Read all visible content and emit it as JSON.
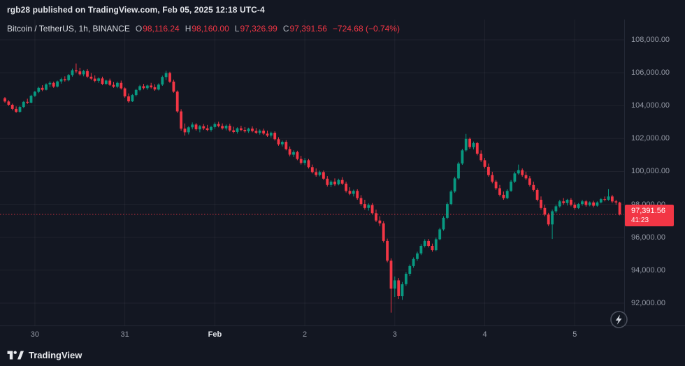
{
  "attribution": {
    "text": "rgb28 published on TradingView.com, Feb 05, 2025 12:18 UTC-4"
  },
  "legend": {
    "symbol": "Bitcoin / TetherUS, 1h, BINANCE",
    "o_label": "O",
    "o_value": "98,116.24",
    "h_label": "H",
    "h_value": "98,160.00",
    "l_label": "L",
    "l_value": "97,326.99",
    "c_label": "C",
    "c_value": "97,391.56",
    "change": "−724.68 (−0.74%)"
  },
  "price_label": {
    "price": "97,391.56",
    "countdown": "41:23"
  },
  "price_axis": {
    "labels": [
      "108,000.00",
      "106,000.00",
      "104,000.00",
      "102,000.00",
      "100,000.00",
      "98,000.00",
      "96,000.00",
      "94,000.00",
      "92,000.00"
    ],
    "values": [
      108000,
      106000,
      104000,
      102000,
      100000,
      98000,
      96000,
      94000,
      92000
    ]
  },
  "time_axis": {
    "ticks": [
      {
        "label": "30",
        "index": 8,
        "major": false
      },
      {
        "label": "31",
        "index": 32,
        "major": false
      },
      {
        "label": "Feb",
        "index": 56,
        "major": true
      },
      {
        "label": "2",
        "index": 80,
        "major": false
      },
      {
        "label": "3",
        "index": 104,
        "major": false
      },
      {
        "label": "4",
        "index": 128,
        "major": false
      },
      {
        "label": "5",
        "index": 152,
        "major": false
      }
    ]
  },
  "footer": {
    "brand": "TradingView"
  },
  "colors": {
    "up": "#089981",
    "down": "#f23645",
    "grid": "rgba(134,139,148,0.10)",
    "background": "#131722",
    "axis_text": "#9499a5",
    "text": "#d1d4dc",
    "badge": "#f23645"
  },
  "chart_data": {
    "type": "candlestick",
    "title": "Bitcoin / TetherUS",
    "exchange": "BINANCE",
    "interval": "1h",
    "ohlc_summary": {
      "open": 98116.24,
      "high": 98160.0,
      "low": 97326.99,
      "close": 97391.56,
      "change": -724.68,
      "change_pct": -0.74
    },
    "last_price": 97391.56,
    "countdown": "41:23",
    "price_view_range": [
      90640,
      109230
    ],
    "y_tick_step": 2000,
    "grid": true,
    "x_tick_labels": [
      "30",
      "31",
      "Feb",
      "2",
      "3",
      "4",
      "5"
    ],
    "candles": [
      [
        104450,
        104520,
        104180,
        104250
      ],
      [
        104250,
        104330,
        103980,
        104050
      ],
      [
        104050,
        104120,
        103720,
        103800
      ],
      [
        103800,
        103950,
        103560,
        103620
      ],
      [
        103620,
        103980,
        103580,
        103920
      ],
      [
        103920,
        104280,
        103850,
        104230
      ],
      [
        104230,
        104420,
        104100,
        104180
      ],
      [
        104180,
        104660,
        104150,
        104600
      ],
      [
        104600,
        104900,
        104520,
        104840
      ],
      [
        104840,
        105150,
        104760,
        105080
      ],
      [
        105080,
        105240,
        104880,
        104960
      ],
      [
        104960,
        105350,
        104920,
        105290
      ],
      [
        105290,
        105480,
        105120,
        105380
      ],
      [
        105380,
        105460,
        105080,
        105160
      ],
      [
        105160,
        105520,
        105100,
        105470
      ],
      [
        105470,
        105700,
        105340,
        105610
      ],
      [
        105610,
        105780,
        105460,
        105540
      ],
      [
        105540,
        105920,
        105480,
        105860
      ],
      [
        105860,
        106240,
        105760,
        106150
      ],
      [
        106150,
        106560,
        105980,
        106080
      ],
      [
        106080,
        106300,
        105820,
        105900
      ],
      [
        105900,
        106180,
        105780,
        106100
      ],
      [
        106100,
        106220,
        105680,
        105760
      ],
      [
        105760,
        105980,
        105560,
        105640
      ],
      [
        105640,
        105840,
        105420,
        105500
      ],
      [
        105500,
        105720,
        105380,
        105650
      ],
      [
        105650,
        105760,
        105250,
        105320
      ],
      [
        105320,
        105580,
        105260,
        105520
      ],
      [
        105520,
        105640,
        105200,
        105260
      ],
      [
        105260,
        105440,
        105080,
        105150
      ],
      [
        105150,
        105460,
        105060,
        105380
      ],
      [
        105380,
        105520,
        104980,
        105050
      ],
      [
        105050,
        105120,
        104480,
        104560
      ],
      [
        104560,
        104740,
        104180,
        104260
      ],
      [
        104260,
        104700,
        104220,
        104640
      ],
      [
        104640,
        105020,
        104560,
        104950
      ],
      [
        104950,
        105260,
        104880,
        105180
      ],
      [
        105180,
        105320,
        104980,
        105060
      ],
      [
        105060,
        105280,
        104960,
        105220
      ],
      [
        105220,
        105380,
        105040,
        105120
      ],
      [
        105120,
        105300,
        104900,
        104980
      ],
      [
        104980,
        105350,
        104920,
        105280
      ],
      [
        105280,
        105820,
        105200,
        105740
      ],
      [
        105740,
        106120,
        105560,
        105980
      ],
      [
        105980,
        106060,
        105380,
        105460
      ],
      [
        105460,
        105580,
        104780,
        104850
      ],
      [
        104850,
        104920,
        103560,
        103650
      ],
      [
        103650,
        103780,
        102480,
        102600
      ],
      [
        102600,
        102920,
        102180,
        102380
      ],
      [
        102380,
        102750,
        102250,
        102680
      ],
      [
        102680,
        102980,
        102560,
        102850
      ],
      [
        102850,
        102940,
        102480,
        102560
      ],
      [
        102560,
        102820,
        102380,
        102750
      ],
      [
        102750,
        102880,
        102520,
        102620
      ],
      [
        102620,
        102830,
        102440,
        102520
      ],
      [
        102520,
        102780,
        102420,
        102700
      ],
      [
        102700,
        102980,
        102600,
        102880
      ],
      [
        102880,
        103020,
        102680,
        102760
      ],
      [
        102760,
        102920,
        102540,
        102620
      ],
      [
        102620,
        102850,
        102500,
        102780
      ],
      [
        102780,
        102900,
        102420,
        102500
      ],
      [
        102500,
        102720,
        102320,
        102400
      ],
      [
        102400,
        102680,
        102300,
        102620
      ],
      [
        102620,
        102780,
        102440,
        102520
      ],
      [
        102520,
        102700,
        102360,
        102440
      ],
      [
        102440,
        102660,
        102340,
        102600
      ],
      [
        102600,
        102740,
        102380,
        102460
      ],
      [
        102460,
        102640,
        102280,
        102350
      ],
      [
        102350,
        102560,
        102240,
        102480
      ],
      [
        102480,
        102600,
        102220,
        102300
      ],
      [
        102300,
        102480,
        102100,
        102180
      ],
      [
        102180,
        102420,
        102060,
        102350
      ],
      [
        102350,
        102440,
        101880,
        101960
      ],
      [
        101960,
        102080,
        101560,
        101650
      ],
      [
        101650,
        101880,
        101520,
        101800
      ],
      [
        101800,
        101900,
        101280,
        101360
      ],
      [
        101360,
        101520,
        100920,
        101020
      ],
      [
        101020,
        101280,
        100880,
        101180
      ],
      [
        101180,
        101260,
        100680,
        100760
      ],
      [
        100760,
        100950,
        100420,
        100520
      ],
      [
        100520,
        100820,
        100380,
        100680
      ],
      [
        100680,
        100760,
        100180,
        100260
      ],
      [
        100260,
        100420,
        99880,
        99960
      ],
      [
        99960,
        100180,
        99680,
        99780
      ],
      [
        99780,
        100050,
        99700,
        99960
      ],
      [
        99960,
        100060,
        99480,
        99560
      ],
      [
        99560,
        99720,
        99080,
        99180
      ],
      [
        99180,
        99460,
        99050,
        99380
      ],
      [
        99380,
        99580,
        99120,
        99220
      ],
      [
        99220,
        99560,
        99160,
        99480
      ],
      [
        99480,
        99650,
        99180,
        99260
      ],
      [
        99260,
        99380,
        98720,
        98820
      ],
      [
        98820,
        99040,
        98560,
        98640
      ],
      [
        98640,
        98900,
        98480,
        98820
      ],
      [
        98820,
        98920,
        98280,
        98380
      ],
      [
        98380,
        98560,
        97920,
        98020
      ],
      [
        98020,
        98280,
        97680,
        97780
      ],
      [
        97780,
        98060,
        97620,
        97960
      ],
      [
        97960,
        98080,
        97380,
        97460
      ],
      [
        97460,
        97680,
        96920,
        97020
      ],
      [
        97020,
        97280,
        96680,
        96850
      ],
      [
        96850,
        96980,
        95680,
        95780
      ],
      [
        95780,
        95920,
        94480,
        94580
      ],
      [
        94580,
        94720,
        91420,
        92880
      ],
      [
        92880,
        93620,
        92380,
        93380
      ],
      [
        93380,
        93520,
        92250,
        92420
      ],
      [
        92420,
        93280,
        92200,
        93150
      ],
      [
        93150,
        93880,
        93050,
        93780
      ],
      [
        93780,
        94350,
        93650,
        94250
      ],
      [
        94250,
        94780,
        94150,
        94680
      ],
      [
        94680,
        95120,
        94580,
        95020
      ],
      [
        95020,
        95580,
        94920,
        95480
      ],
      [
        95480,
        95880,
        95380,
        95780
      ],
      [
        95780,
        95900,
        95380,
        95480
      ],
      [
        95480,
        95620,
        95120,
        95220
      ],
      [
        95220,
        95980,
        95160,
        95880
      ],
      [
        95880,
        96580,
        95820,
        96480
      ],
      [
        96480,
        97280,
        96400,
        97180
      ],
      [
        97180,
        98120,
        97100,
        98020
      ],
      [
        98020,
        98880,
        97950,
        98780
      ],
      [
        98780,
        99680,
        98700,
        99580
      ],
      [
        99580,
        100580,
        99500,
        100480
      ],
      [
        100480,
        101380,
        100400,
        101280
      ],
      [
        101280,
        102280,
        101200,
        101980
      ],
      [
        101980,
        102060,
        101380,
        101480
      ],
      [
        101480,
        101820,
        101350,
        101720
      ],
      [
        101720,
        101800,
        100980,
        101080
      ],
      [
        101080,
        101280,
        100580,
        100680
      ],
      [
        100680,
        100820,
        100180,
        100280
      ],
      [
        100280,
        100480,
        99680,
        99780
      ],
      [
        99780,
        99980,
        99280,
        99380
      ],
      [
        99380,
        99480,
        98880,
        98980
      ],
      [
        98980,
        99180,
        98480,
        98580
      ],
      [
        98580,
        98780,
        98280,
        98380
      ],
      [
        98380,
        98920,
        98320,
        98820
      ],
      [
        98820,
        99480,
        98760,
        99380
      ],
      [
        99380,
        99980,
        99300,
        99880
      ],
      [
        99880,
        100420,
        99800,
        100080
      ],
      [
        100080,
        100180,
        99680,
        99780
      ],
      [
        99780,
        99980,
        99480,
        99580
      ],
      [
        99580,
        99720,
        99080,
        99180
      ],
      [
        99180,
        99380,
        98780,
        98880
      ],
      [
        98880,
        98980,
        98180,
        98280
      ],
      [
        98280,
        98480,
        97680,
        97780
      ],
      [
        97780,
        97980,
        97280,
        97380
      ],
      [
        97380,
        97480,
        96680,
        96780
      ],
      [
        96780,
        97680,
        95900,
        97580
      ],
      [
        97580,
        97980,
        97480,
        97880
      ],
      [
        97880,
        98280,
        97800,
        98180
      ],
      [
        98180,
        98380,
        97980,
        98080
      ],
      [
        98080,
        98330,
        97930,
        98280
      ],
      [
        98280,
        98380,
        97880,
        97980
      ],
      [
        97980,
        98120,
        97680,
        97780
      ],
      [
        97780,
        98080,
        97720,
        98020
      ],
      [
        98020,
        98280,
        97920,
        98180
      ],
      [
        98180,
        98260,
        97860,
        97960
      ],
      [
        97960,
        98180,
        97880,
        98120
      ],
      [
        98120,
        98220,
        97820,
        97920
      ],
      [
        97920,
        98180,
        97860,
        98120
      ],
      [
        98120,
        98380,
        98060,
        98320
      ],
      [
        98320,
        98480,
        98180,
        98280
      ],
      [
        98280,
        98920,
        98220,
        98480
      ],
      [
        98480,
        98580,
        98080,
        98180
      ],
      [
        98180,
        98280,
        97980,
        98116.24
      ],
      [
        98116.24,
        98160,
        97326.99,
        97391.56
      ]
    ]
  }
}
